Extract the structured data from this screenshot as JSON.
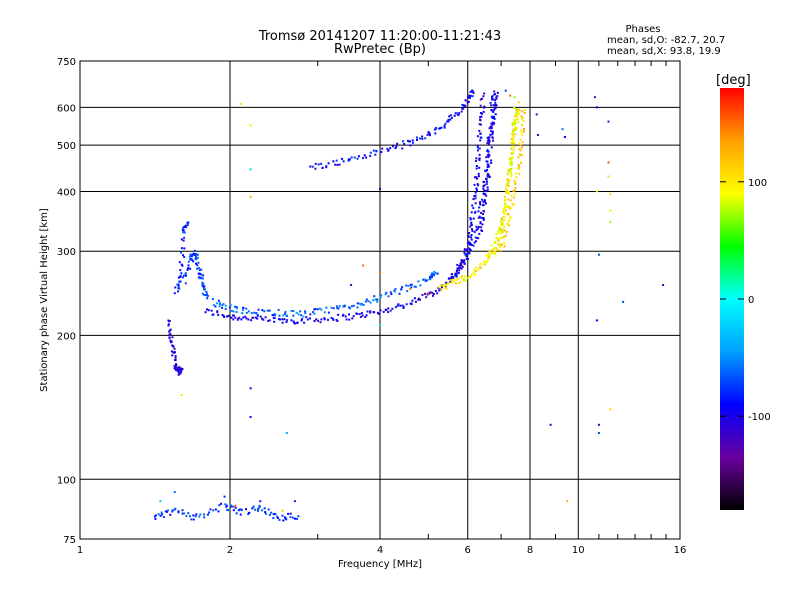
{
  "title_line1": "Tromsø 20141207 11:20:00-11:21:43",
  "title_line2": "RwPretec (Bp)",
  "phases": {
    "heading": "Phases",
    "line1": "mean, sd,O: -82.7, 20.7",
    "line2": "mean, sd,X: 93.8, 19.9"
  },
  "chart_data": {
    "type": "scatter",
    "xlabel": "Frequency [MHz]",
    "ylabel": "Stationary phase Virtual Height [km]",
    "xscale": "log",
    "yscale": "log",
    "xlim": [
      1,
      16
    ],
    "ylim": [
      75,
      750
    ],
    "x_ticks": [
      1,
      2,
      4,
      6,
      8,
      10,
      16
    ],
    "x_tick_labels": [
      "1",
      "2",
      "4",
      "6",
      "8",
      "10",
      "16"
    ],
    "y_ticks": [
      75,
      100,
      200,
      300,
      400,
      500,
      600,
      750
    ],
    "y_tick_labels": [
      "75",
      "100",
      "200",
      "300",
      "400",
      "500",
      "600",
      "750"
    ],
    "grid": true,
    "colorbar": {
      "label": "[deg]",
      "range": [
        -180,
        180
      ],
      "ticks": [
        100,
        0,
        -100
      ],
      "tick_labels": [
        "100",
        "0",
        "-100"
      ],
      "stops": [
        "#000000",
        "#6a00a0",
        "#0000ff",
        "#00a0ff",
        "#00ffff",
        "#00ff00",
        "#ffff00",
        "#ffa000",
        "#ff0000"
      ]
    },
    "series": [
      {
        "traces": [
          {
            "phase": -100,
            "pts": [
              [
                1.78,
                225
              ],
              [
                2.0,
                219
              ],
              [
                2.2,
                217
              ],
              [
                2.5,
                215
              ],
              [
                2.8,
                215
              ],
              [
                3.2,
                217
              ],
              [
                3.6,
                220
              ],
              [
                4.0,
                224
              ],
              [
                4.5,
                232
              ],
              [
                5.0,
                243
              ],
              [
                5.4,
                255
              ],
              [
                5.7,
                270
              ],
              [
                5.9,
                290
              ],
              [
                6.05,
                320
              ],
              [
                6.15,
                360
              ],
              [
                6.25,
                420
              ],
              [
                6.3,
                480
              ],
              [
                6.38,
                560
              ],
              [
                6.45,
                640
              ]
            ]
          },
          {
            "phase": -90,
            "pts": [
              [
                2.9,
                450
              ],
              [
                3.3,
                460
              ],
              [
                3.8,
                478
              ],
              [
                4.3,
                495
              ],
              [
                4.8,
                515
              ],
              [
                5.3,
                545
              ],
              [
                5.7,
                580
              ],
              [
                6.0,
                620
              ],
              [
                6.15,
                650
              ]
            ]
          },
          {
            "phase": -95,
            "pts": [
              [
                5.6,
                262
              ],
              [
                5.85,
                280
              ],
              [
                6.1,
                305
              ],
              [
                6.3,
                340
              ],
              [
                6.45,
                390
              ],
              [
                6.55,
                440
              ],
              [
                6.62,
                500
              ],
              [
                6.7,
                560
              ],
              [
                6.75,
                640
              ]
            ]
          },
          {
            "phase": -100,
            "pts": [
              [
                6.35,
                320
              ],
              [
                6.5,
                380
              ],
              [
                6.6,
                440
              ],
              [
                6.7,
                520
              ],
              [
                6.78,
                600
              ],
              [
                6.85,
                650
              ]
            ]
          },
          {
            "phase": -75,
            "pts": [
              [
                1.62,
                260
              ],
              [
                1.66,
                285
              ],
              [
                1.7,
                300
              ],
              [
                1.74,
                275
              ],
              [
                1.76,
                255
              ],
              [
                1.8,
                240
              ]
            ]
          },
          {
            "phase": -80,
            "pts": [
              [
                1.56,
                245
              ],
              [
                1.59,
                270
              ],
              [
                1.62,
                330
              ],
              [
                1.64,
                345
              ]
            ]
          },
          {
            "phase": -105,
            "pts": [
              [
                1.5,
                215
              ],
              [
                1.53,
                195
              ],
              [
                1.55,
                175
              ],
              [
                1.58,
                168
              ],
              [
                1.6,
                168
              ]
            ]
          },
          {
            "phase": -65,
            "pts": [
              [
                1.85,
                235
              ],
              [
                2.0,
                228
              ],
              [
                2.2,
                224
              ],
              [
                2.5,
                223
              ],
              [
                2.8,
                222
              ],
              [
                3.2,
                226
              ],
              [
                3.6,
                232
              ],
              [
                4.0,
                240
              ],
              [
                4.5,
                250
              ],
              [
                5.0,
                262
              ],
              [
                5.2,
                270
              ]
            ]
          },
          {
            "phase": -75,
            "pts": [
              [
                1.4,
                83
              ],
              [
                1.55,
                86
              ],
              [
                1.7,
                83
              ],
              [
                1.95,
                88
              ],
              [
                2.1,
                85
              ],
              [
                2.3,
                87
              ],
              [
                2.5,
                83
              ],
              [
                2.75,
                84
              ]
            ]
          }
        ]
      },
      {
        "traces": [
          {
            "phase": 100,
            "pts": [
              [
                5.3,
                252
              ],
              [
                5.6,
                258
              ],
              [
                6.0,
                265
              ],
              [
                6.4,
                280
              ],
              [
                6.8,
                300
              ],
              [
                7.0,
                330
              ],
              [
                7.15,
                380
              ],
              [
                7.3,
                440
              ],
              [
                7.4,
                500
              ],
              [
                7.5,
                560
              ],
              [
                7.6,
                600
              ]
            ]
          },
          {
            "phase": 90,
            "pts": [
              [
                6.6,
                290
              ],
              [
                6.9,
                320
              ],
              [
                7.1,
                360
              ],
              [
                7.25,
                420
              ],
              [
                7.35,
                480
              ],
              [
                7.42,
                540
              ],
              [
                7.5,
                600
              ]
            ]
          },
          {
            "phase": 110,
            "pts": [
              [
                7.0,
                300
              ],
              [
                7.2,
                340
              ],
              [
                7.4,
                390
              ],
              [
                7.6,
                450
              ],
              [
                7.7,
                520
              ],
              [
                7.78,
                600
              ]
            ]
          }
        ]
      },
      {
        "scatter": [
          [
            2.1,
            610,
            110
          ],
          [
            2.2,
            550,
            100
          ],
          [
            2.2,
            445,
            -20
          ],
          [
            2.2,
            390,
            130
          ],
          [
            2.2,
            155,
            -100
          ],
          [
            2.2,
            135,
            -110
          ],
          [
            2.6,
            125,
            -40
          ],
          [
            1.6,
            150,
            100
          ],
          [
            4.0,
            270,
            150
          ],
          [
            4.0,
            210,
            20
          ],
          [
            4.0,
            405,
            -110
          ],
          [
            3.7,
            280,
            150
          ],
          [
            3.5,
            255,
            -120
          ],
          [
            4.6,
            250,
            140
          ],
          [
            5.0,
            245,
            170
          ],
          [
            8.25,
            580,
            -130
          ],
          [
            8.3,
            525,
            -120
          ],
          [
            8.8,
            130,
            -100
          ],
          [
            9.3,
            540,
            -60
          ],
          [
            9.5,
            90,
            130
          ],
          [
            9.4,
            520,
            -90
          ],
          [
            10.8,
            630,
            -110
          ],
          [
            10.9,
            600,
            -90
          ],
          [
            10.9,
            400,
            100
          ],
          [
            10.9,
            215,
            -90
          ],
          [
            11.0,
            130,
            -100
          ],
          [
            11.0,
            125,
            -70
          ],
          [
            11.0,
            295,
            -70
          ],
          [
            11.5,
            560,
            -80
          ],
          [
            11.5,
            460,
            160
          ],
          [
            11.5,
            430,
            110
          ],
          [
            11.6,
            395,
            110
          ],
          [
            11.6,
            365,
            100
          ],
          [
            11.6,
            345,
            70
          ],
          [
            11.6,
            140,
            110
          ],
          [
            12.3,
            235,
            -70
          ],
          [
            14.8,
            255,
            -110
          ],
          [
            7.15,
            650,
            -70
          ],
          [
            7.3,
            635,
            150
          ],
          [
            7.45,
            630,
            70
          ],
          [
            7.6,
            615,
            110
          ],
          [
            1.45,
            90,
            -20
          ],
          [
            1.55,
            94,
            -60
          ],
          [
            1.95,
            92,
            -80
          ],
          [
            2.05,
            88,
            150
          ],
          [
            2.3,
            90,
            -80
          ],
          [
            2.55,
            86,
            120
          ],
          [
            2.7,
            90,
            -80
          ]
        ]
      }
    ]
  }
}
